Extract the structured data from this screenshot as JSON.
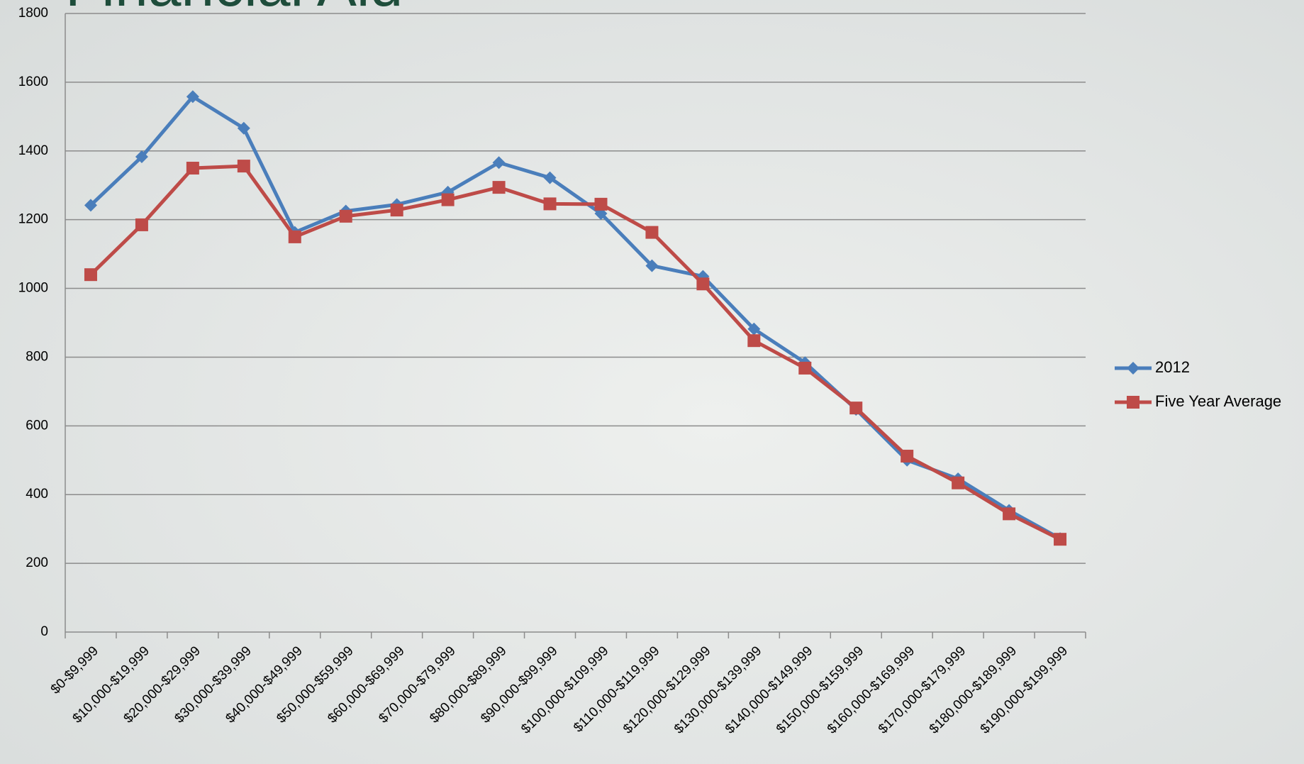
{
  "chart_data": {
    "type": "line",
    "title": "Financial Aid",
    "categories": [
      "$0-$9,999",
      "$10,000-$19,999",
      "$20,000-$29,999",
      "$30,000-$39,999",
      "$40,000-$49,999",
      "$50,000-$59,999",
      "$60,000-$69,999",
      "$70,000-$79,999",
      "$80,000-$89,999",
      "$90,000-$99,999",
      "$100,000-$109,999",
      "$110,000-$119,999",
      "$120,000-$129,999",
      "$130,000-$139,999",
      "$140,000-$149,999",
      "$150,000-$159,999",
      "$160,000-$169,999",
      "$170,000-$179,999",
      "$180,000-$189,999",
      "$190,000-$199,999"
    ],
    "series": [
      {
        "name": "2012",
        "color": "#4a7ebb",
        "marker": "diamond",
        "values": [
          1242,
          1383,
          1558,
          1466,
          1163,
          1225,
          1244,
          1280,
          1366,
          1322,
          1218,
          1066,
          1035,
          882,
          784,
          648,
          500,
          446,
          354,
          272
        ]
      },
      {
        "name": "Five Year Average",
        "color": "#be4b48",
        "marker": "square",
        "values": [
          1040,
          1185,
          1350,
          1356,
          1150,
          1210,
          1228,
          1258,
          1294,
          1246,
          1245,
          1163,
          1013,
          848,
          768,
          652,
          512,
          434,
          344,
          270
        ]
      }
    ],
    "ylim": [
      0,
      1800
    ],
    "yticks": [
      0,
      200,
      400,
      600,
      800,
      1000,
      1200,
      1400,
      1600,
      1800
    ],
    "grid": true,
    "legend": "right"
  }
}
